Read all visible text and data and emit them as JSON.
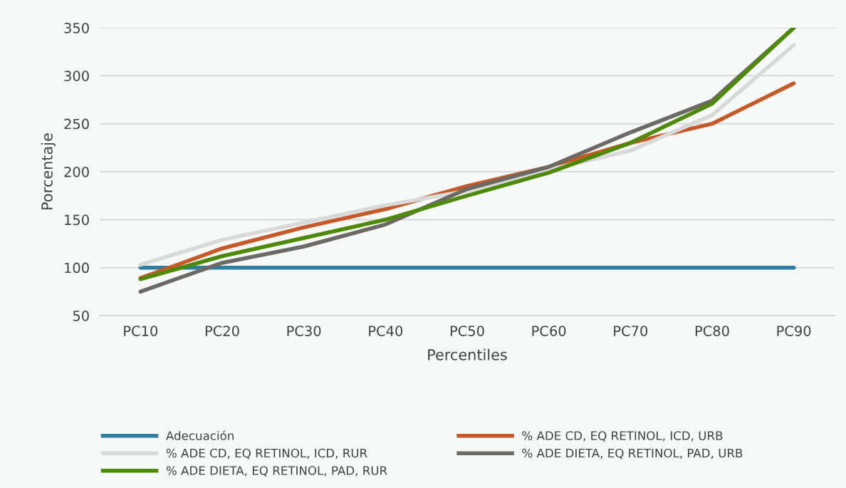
{
  "chart_data": {
    "type": "line",
    "xlabel": "Percentiles",
    "ylabel": "Porcentaje",
    "categories": [
      "PC10",
      "PC20",
      "PC30",
      "PC40",
      "PC50",
      "PC60",
      "PC70",
      "PC80",
      "PC90"
    ],
    "series": [
      {
        "name": "Adecuación",
        "color": "#2e7ea1",
        "values": [
          100,
          100,
          100,
          100,
          100,
          100,
          100,
          100,
          100
        ]
      },
      {
        "name": "% ADE CD, EQ RETINOL, ICD, URB",
        "color": "#c55a28",
        "values": [
          89,
          120,
          142,
          161,
          185,
          205,
          230,
          250,
          292
        ]
      },
      {
        "name": "% ADE CD, EQ RETINOL, ICD, RUR",
        "color": "#d9d9d9",
        "values": [
          103,
          129,
          147,
          165,
          180,
          202,
          222,
          259,
          332
        ]
      },
      {
        "name": "% ADE DIETA, EQ RETINOL, PAD, URB",
        "color": "#6d6a65",
        "values": [
          75,
          105,
          122,
          145,
          182,
          205,
          241,
          274,
          350
        ]
      },
      {
        "name": "% ADE DIETA, EQ RETINOL, PAD, RUR",
        "color": "#4e8a07",
        "values": [
          88,
          112,
          131,
          150,
          175,
          199,
          230,
          271,
          350
        ]
      }
    ],
    "ylim": [
      50,
      350
    ],
    "yticks": [
      50,
      100,
      150,
      200,
      250,
      300,
      350
    ],
    "grid": "y",
    "legend": "bottom",
    "marker": "none",
    "line_style": "solid"
  }
}
